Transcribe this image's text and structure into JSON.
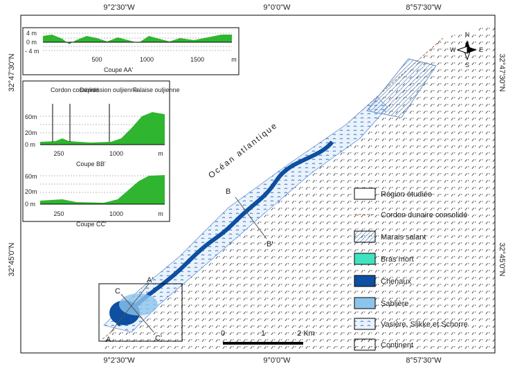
{
  "frame": {
    "top_labels": [
      "9°2'30\"W",
      "9°0'0\"W",
      "8°57'30\"W"
    ],
    "bottom_labels": [
      "9°2'30\"W",
      "9°0'0\"W",
      "8°57'30\"W"
    ],
    "left_labels": [
      "32°47'30\"N",
      "32°45'0\"N"
    ],
    "right_labels": [
      "32°47'30\"N",
      "32°45'0\"N"
    ]
  },
  "profiles": [
    {
      "title": "Coupe AA'",
      "y_labels": [
        "4 m",
        "0 m",
        "- 4 m"
      ],
      "x_labels": [
        "500",
        "1000",
        "1500"
      ],
      "unit": "m"
    },
    {
      "title": "Coupe BB'",
      "y_labels": [
        "60m",
        "20m",
        "0 m"
      ],
      "x_labels": [
        "250",
        "1000"
      ],
      "unit": "m",
      "annotations": [
        "Cordon consolidé",
        "Dépression ouljienne",
        "Falaise ouljienne"
      ]
    },
    {
      "title": "Coupe CC'",
      "y_labels": [
        "60m",
        "20m",
        "0 m"
      ],
      "x_labels": [
        "250",
        "1000"
      ],
      "unit": "m"
    }
  ],
  "legend": [
    {
      "label": "Région étudiée"
    },
    {
      "label": "Cordon dunaire consolidé"
    },
    {
      "label": "Marais salant"
    },
    {
      "label": "Bras mort"
    },
    {
      "label": "Chenaux"
    },
    {
      "label": "Sablière"
    },
    {
      "label": "Vasière, Slikke et Schorre"
    },
    {
      "label": "Continent"
    }
  ],
  "scale_bar": {
    "labels": [
      "0",
      "1",
      "2 Km"
    ]
  },
  "compass": {
    "n": "N",
    "s": "S",
    "e": "E",
    "w": "W"
  },
  "ocean_label": "Océan atlantique",
  "section_labels": [
    "A",
    "A'",
    "B",
    "B'",
    "C",
    "C'"
  ]
}
